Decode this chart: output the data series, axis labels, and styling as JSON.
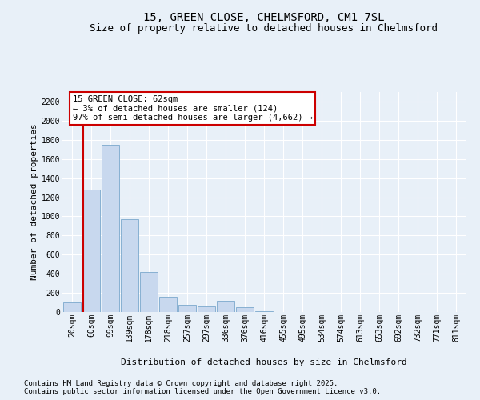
{
  "title_line1": "15, GREEN CLOSE, CHELMSFORD, CM1 7SL",
  "title_line2": "Size of property relative to detached houses in Chelmsford",
  "xlabel": "Distribution of detached houses by size in Chelmsford",
  "ylabel": "Number of detached properties",
  "categories": [
    "20sqm",
    "60sqm",
    "99sqm",
    "139sqm",
    "178sqm",
    "218sqm",
    "257sqm",
    "297sqm",
    "336sqm",
    "376sqm",
    "416sqm",
    "455sqm",
    "495sqm",
    "534sqm",
    "574sqm",
    "613sqm",
    "653sqm",
    "692sqm",
    "732sqm",
    "771sqm",
    "811sqm"
  ],
  "values": [
    100,
    1280,
    1750,
    970,
    420,
    160,
    75,
    55,
    120,
    50,
    10,
    2,
    0,
    0,
    0,
    0,
    0,
    0,
    0,
    0,
    0
  ],
  "bar_color": "#c8d8ee",
  "bar_edge_color": "#7aa8cc",
  "vline_color": "#cc0000",
  "vline_x": 0.575,
  "annotation_text": "15 GREEN CLOSE: 62sqm\n← 3% of detached houses are smaller (124)\n97% of semi-detached houses are larger (4,662) →",
  "annotation_box_color": "#ffffff",
  "annotation_box_edge": "#cc0000",
  "ylim_max": 2300,
  "yticks": [
    0,
    200,
    400,
    600,
    800,
    1000,
    1200,
    1400,
    1600,
    1800,
    2000,
    2200
  ],
  "footnote1": "Contains HM Land Registry data © Crown copyright and database right 2025.",
  "footnote2": "Contains public sector information licensed under the Open Government Licence v3.0.",
  "background_color": "#e8f0f8",
  "grid_color": "#ffffff",
  "title_fontsize": 10,
  "subtitle_fontsize": 9,
  "axis_label_fontsize": 8,
  "tick_fontsize": 7,
  "annotation_fontsize": 7.5,
  "footnote_fontsize": 6.5
}
